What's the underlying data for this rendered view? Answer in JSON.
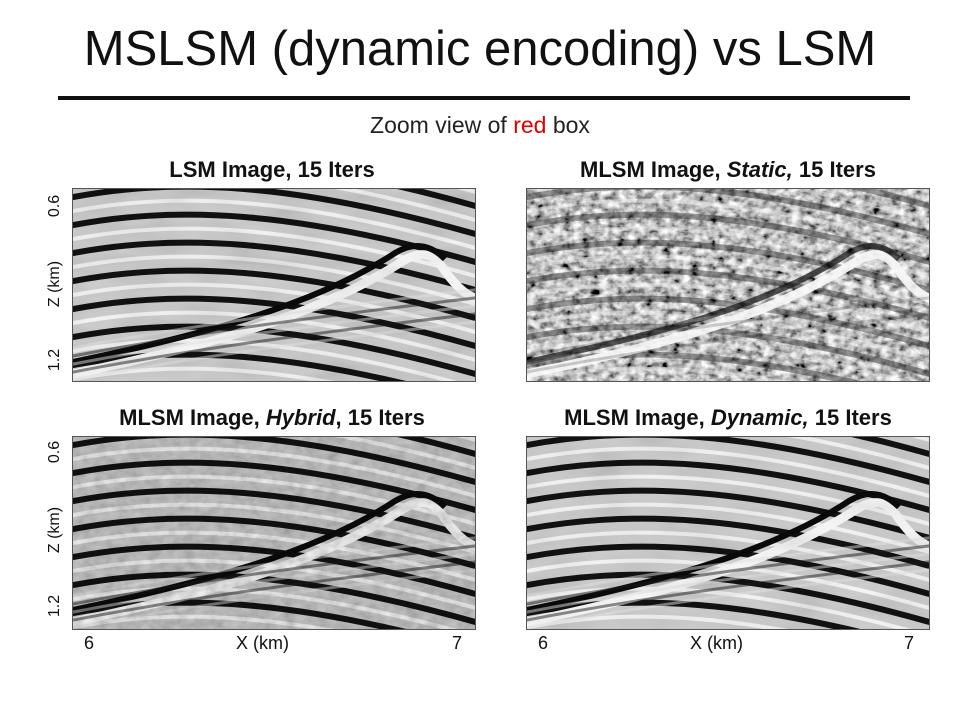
{
  "slide": {
    "title": "MSLSM (dynamic encoding) vs LSM",
    "subtitle_prefix": "Zoom view of ",
    "subtitle_highlight": "red",
    "subtitle_suffix": " box",
    "highlight_color": "#e00000"
  },
  "panels": [
    {
      "title_prefix": "LSM Image, 15 Iters",
      "title_italic": "",
      "title_suffix": ""
    },
    {
      "title_prefix": "MLSM Image, ",
      "title_italic": "Static,",
      "title_suffix": " 15 Iters"
    },
    {
      "title_prefix": "MLSM Image, ",
      "title_italic": "Hybrid",
      "title_suffix": ", 15 Iters"
    },
    {
      "title_prefix": "MLSM Image, ",
      "title_italic": "Dynamic,",
      "title_suffix": " 15 Iters"
    }
  ],
  "axes": {
    "z_label": "Z (km)",
    "z_top": "0.6",
    "z_bottom": "1.2",
    "x_label": "X (km)",
    "x_left": "6",
    "x_right": "7"
  }
}
